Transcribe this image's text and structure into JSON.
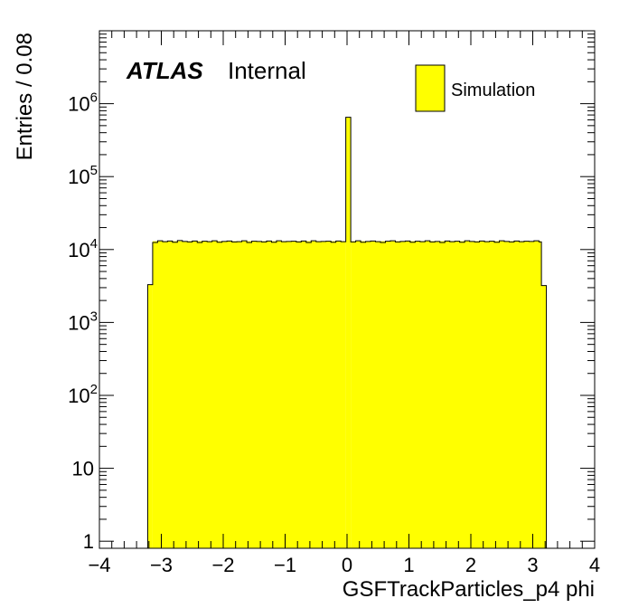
{
  "labels": {
    "experiment": "ATLAS",
    "status": "Internal"
  },
  "colors": {
    "fill": "#ffff00",
    "line": "#000000",
    "background": "#ffffff"
  },
  "chart_data": {
    "type": "bar",
    "histogram": true,
    "title": "",
    "xlabel": "GSFTrackParticles_p4 phi",
    "ylabel": "Entries / 0.08",
    "xlim": [
      -4,
      4
    ],
    "ylim": [
      0.8,
      10000000
    ],
    "yscale": "log",
    "grid": false,
    "legend_position": "top-right",
    "xticks": [
      "−4",
      "−3",
      "−2",
      "−1",
      "0",
      "1",
      "2",
      "3",
      "4"
    ],
    "yticks": [
      {
        "value": 1,
        "label": "1"
      },
      {
        "value": 10,
        "label": "10"
      },
      {
        "value": 100,
        "label": "10",
        "exp": "2"
      },
      {
        "value": 1000,
        "label": "10",
        "exp": "3"
      },
      {
        "value": 10000,
        "label": "10",
        "exp": "4"
      },
      {
        "value": 100000,
        "label": "10",
        "exp": "5"
      },
      {
        "value": 1000000,
        "label": "10",
        "exp": "6"
      }
    ],
    "series": [
      {
        "name": "Simulation",
        "bin_width": 0.08,
        "bins": [
          {
            "x0": -3.22,
            "x1": -3.14,
            "y": 3300
          },
          {
            "x0": -3.14,
            "x1": -0.02,
            "y": 13000
          },
          {
            "x0": -0.02,
            "x1": 0.06,
            "y": 650000
          },
          {
            "x0": 0.06,
            "x1": 3.14,
            "y": 13000
          },
          {
            "x0": 3.14,
            "x1": 3.22,
            "y": 3200
          }
        ],
        "ripple_edges": [
          -3.14,
          -3.06,
          -2.98,
          -2.9,
          -2.82,
          -2.74,
          -2.66,
          -2.58,
          -2.5,
          -2.42,
          -2.34,
          -2.26,
          -2.18,
          -2.1,
          -2.02,
          -1.94,
          -1.86,
          -1.78,
          -1.7,
          -1.62,
          -1.54,
          -1.46,
          -1.38,
          -1.3,
          -1.22,
          -1.14,
          -1.06,
          -0.98,
          -0.9,
          -0.82,
          -0.74,
          -0.66,
          -0.58,
          -0.5,
          -0.42,
          -0.34,
          -0.26,
          -0.18,
          -0.1,
          -0.02,
          0.06,
          0.14,
          0.22,
          0.3,
          0.38,
          0.46,
          0.54,
          0.62,
          0.7,
          0.78,
          0.86,
          0.94,
          1.02,
          1.1,
          1.18,
          1.26,
          1.34,
          1.42,
          1.5,
          1.58,
          1.66,
          1.74,
          1.82,
          1.9,
          1.98,
          2.06,
          2.14,
          2.22,
          2.3,
          2.38,
          2.46,
          2.54,
          2.62,
          2.7,
          2.78,
          2.86,
          2.94,
          3.02,
          3.1,
          3.14
        ],
        "ripple_values": [
          12500,
          13200,
          12800,
          13100,
          12600,
          13300,
          12900,
          12700,
          13100,
          12500,
          13000,
          12800,
          13200,
          12600,
          12900,
          13100,
          12700,
          12800,
          13200,
          12500,
          13000,
          12900,
          12700,
          13100,
          12600,
          13200,
          12800,
          12900,
          13000,
          12700,
          13100,
          12500,
          13200,
          12800,
          12900,
          13000,
          12600,
          13100,
          12800,
          13000,
          12700,
          13200,
          12600,
          12900,
          13100,
          12800,
          12500,
          13000,
          13200,
          12700,
          12900,
          13100,
          12600,
          13000,
          12800,
          13200,
          12700,
          12900,
          12500,
          13100,
          12800,
          13000,
          12600,
          13200,
          12900,
          12700,
          13100,
          12800,
          13000,
          12600,
          13200,
          12900,
          12700,
          13100,
          12800,
          13000,
          12900,
          13200,
          12700
        ]
      }
    ]
  }
}
